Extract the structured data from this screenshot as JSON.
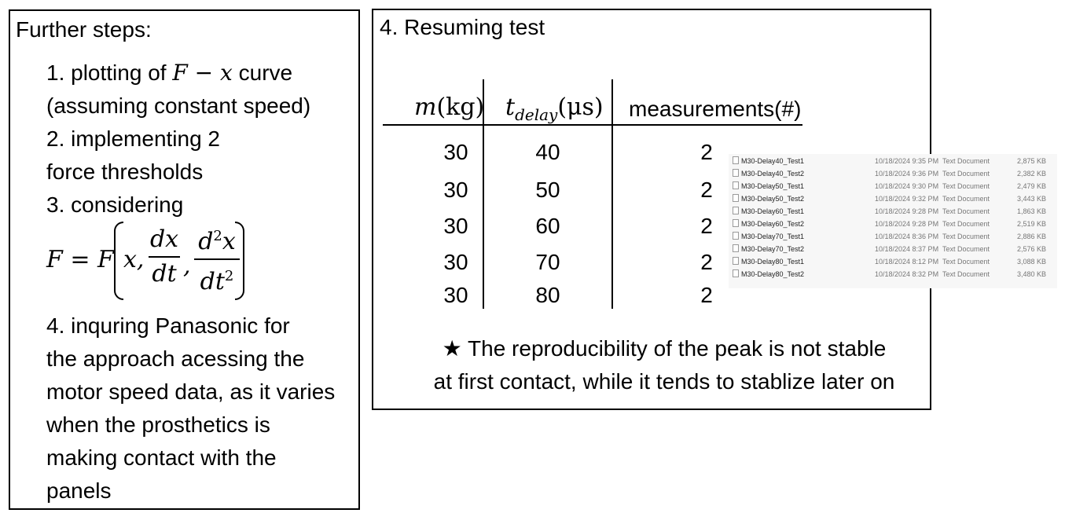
{
  "left": {
    "title": "Further steps:",
    "step1_prefix": "1. plotting of ",
    "step1_math_F": "F",
    "step1_math_minus": " − ",
    "step1_math_x": "x",
    "step1_suffix": " curve",
    "step1_line2": "(assuming constant speed)",
    "step2_line1": "2. implementing 2",
    "step2_line2": "force thresholds",
    "step3": "3. considering",
    "formula": {
      "lhs": "F = F",
      "arg_x": "x,",
      "frac1_num": "dx",
      "frac1_den": "dt",
      "comma": ",",
      "frac2_num": "d",
      "frac2_num_sup": "2",
      "frac2_num_var": "x",
      "frac2_den": "dt",
      "frac2_den_sup": "2"
    },
    "step4_lines": [
      "4. inquring Panasonic for",
      "the approach acessing the",
      "motor speed data, as it varies",
      "when the prosthetics is",
      "making contact with the",
      "panels"
    ]
  },
  "right": {
    "title": "4. Resuming test",
    "headers": {
      "mass_var": "m",
      "mass_unit": "(kg)",
      "delay_var": "t",
      "delay_sub": "delay",
      "delay_unit": "(μs)",
      "measurements": "measurements(#)"
    },
    "rows": [
      {
        "mass": "30",
        "delay": "40",
        "count": "2"
      },
      {
        "mass": "30",
        "delay": "50",
        "count": "2"
      },
      {
        "mass": "30",
        "delay": "60",
        "count": "2"
      },
      {
        "mass": "30",
        "delay": "70",
        "count": "2"
      },
      {
        "mass": "30",
        "delay": "80",
        "count": "2"
      }
    ],
    "note_line1": "★ The reproducibility of the peak is not stable",
    "note_line2": "at first contact, while it tends to stablize later on"
  },
  "files": [
    {
      "name": "M30-Delay40_Test1",
      "date": "10/18/2024 9:35 PM",
      "type": "Text Document",
      "size": "2,875 KB"
    },
    {
      "name": "M30-Delay40_Test2",
      "date": "10/18/2024 9:36 PM",
      "type": "Text Document",
      "size": "2,382 KB"
    },
    {
      "name": "M30-Delay50_Test1",
      "date": "10/18/2024 9:30 PM",
      "type": "Text Document",
      "size": "2,479 KB"
    },
    {
      "name": "M30-Delay50_Test2",
      "date": "10/18/2024 9:32 PM",
      "type": "Text Document",
      "size": "3,443 KB"
    },
    {
      "name": "M30-Delay60_Test1",
      "date": "10/18/2024 9:28 PM",
      "type": "Text Document",
      "size": "1,863 KB"
    },
    {
      "name": "M30-Delay60_Test2",
      "date": "10/18/2024 9:28 PM",
      "type": "Text Document",
      "size": "2,519 KB"
    },
    {
      "name": "M30-Delay70_Test1",
      "date": "10/18/2024 8:36 PM",
      "type": "Text Document",
      "size": "2,886 KB"
    },
    {
      "name": "M30-Delay70_Test2",
      "date": "10/18/2024 8:37 PM",
      "type": "Text Document",
      "size": "2,576 KB"
    },
    {
      "name": "M30-Delay80_Test1",
      "date": "10/18/2024 8:12 PM",
      "type": "Text Document",
      "size": "3,088 KB"
    },
    {
      "name": "M30-Delay80_Test2",
      "date": "10/18/2024 8:32 PM",
      "type": "Text Document",
      "size": "3,480 KB"
    }
  ]
}
